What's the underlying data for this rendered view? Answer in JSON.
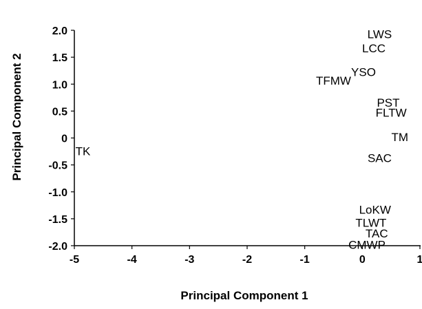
{
  "chart_data": {
    "type": "scatter",
    "xlabel": "Principal Component 1",
    "ylabel": "Principal Component 2",
    "xlim": [
      -5,
      1
    ],
    "ylim": [
      -2,
      2
    ],
    "x_ticks": [
      "-5",
      "-4",
      "-3",
      "-2",
      "-1",
      "0",
      "1"
    ],
    "y_ticks": [
      "2.0",
      "1.5",
      "1.0",
      "0.5",
      "0",
      "-0.5",
      "-1.0",
      "-1.5",
      "-2.0"
    ],
    "grid": false,
    "points": [
      {
        "label": "LWS",
        "x": 0.3,
        "y": 1.93
      },
      {
        "label": "LCC",
        "x": 0.2,
        "y": 1.67
      },
      {
        "label": "YSO",
        "x": 0.02,
        "y": 1.23
      },
      {
        "label": "TFMW",
        "x": -0.5,
        "y": 1.07
      },
      {
        "label": "PST",
        "x": 0.45,
        "y": 0.66
      },
      {
        "label": "FLTW",
        "x": 0.5,
        "y": 0.47
      },
      {
        "label": "TM",
        "x": 0.65,
        "y": 0.02
      },
      {
        "label": "SAC",
        "x": 0.3,
        "y": -0.37
      },
      {
        "label": "TK",
        "x": -4.85,
        "y": -0.24
      },
      {
        "label": "LoKW",
        "x": 0.22,
        "y": -1.33
      },
      {
        "label": "TLWT",
        "x": 0.15,
        "y": -1.57
      },
      {
        "label": "TAC",
        "x": 0.25,
        "y": -1.77
      },
      {
        "label": "CMWP",
        "x": 0.08,
        "y": -1.98
      }
    ]
  }
}
